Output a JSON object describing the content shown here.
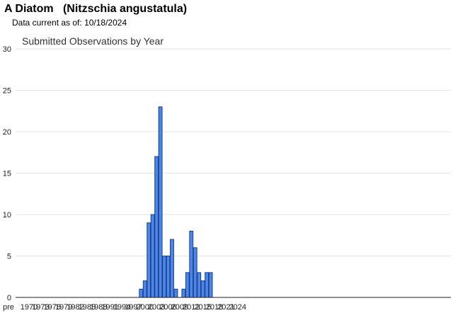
{
  "header": {
    "title": "A Diatom   (Nitzschia angustatula)",
    "date_label": "Data current as of:",
    "date_value": "10/18/2024"
  },
  "chart_data": {
    "type": "bar",
    "title": "Submitted Observations by Year",
    "xlabel": "",
    "ylabel": "",
    "ylim": [
      0,
      30
    ],
    "yticks": [
      0,
      5,
      10,
      15,
      20,
      25,
      30
    ],
    "grid": true,
    "colors": {
      "bar_fill": "#4d86e6",
      "bar_stroke": "#163d8c",
      "grid": "#e3e3e3",
      "axis": "#222222"
    },
    "categories": [
      "pre",
      "1970",
      "1971",
      "1972",
      "1973",
      "1974",
      "1975",
      "1976",
      "1977",
      "1978",
      "1979",
      "1980",
      "1981",
      "1982",
      "1983",
      "1984",
      "1985",
      "1986",
      "1987",
      "1988",
      "1989",
      "1990",
      "1991",
      "1992",
      "1993",
      "1994",
      "1995",
      "1996",
      "1997",
      "1998",
      "1999",
      "2000",
      "2001",
      "2002",
      "2003",
      "2004",
      "2005",
      "2006",
      "2007",
      "2008",
      "2009",
      "2010",
      "2011",
      "2012",
      "2013",
      "2014",
      "2015",
      "2016",
      "2017",
      "2018",
      "2019",
      "2020",
      "2021",
      "2022",
      "2023",
      "2024"
    ],
    "tick_labels": [
      "pre",
      "1970",
      "1973",
      "1976",
      "1979",
      "1982",
      "1985",
      "1988",
      "1991",
      "1994",
      "1997",
      "2000",
      "2003",
      "2006",
      "2009",
      "2012",
      "2015",
      "2018",
      "2021",
      "2024"
    ],
    "values": [
      0,
      0,
      0,
      0,
      0,
      0,
      0,
      0,
      0,
      0,
      0,
      0,
      0,
      0,
      0,
      0,
      0,
      0,
      0,
      0,
      0,
      0,
      0,
      0,
      0,
      0,
      0,
      0,
      0,
      0,
      1,
      2,
      9,
      10,
      17,
      23,
      5,
      5,
      7,
      1,
      0,
      1,
      3,
      8,
      6,
      3,
      2,
      3,
      3,
      0,
      0,
      0,
      0,
      0,
      0,
      0
    ]
  }
}
